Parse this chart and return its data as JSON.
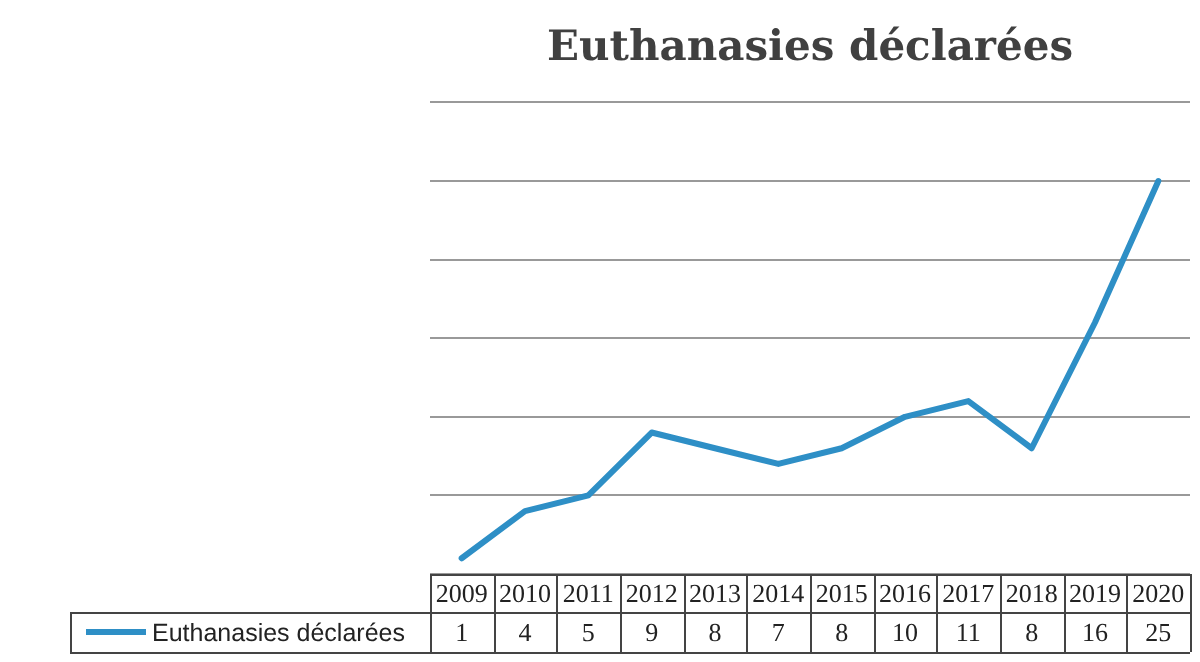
{
  "chart_data": {
    "type": "line",
    "title": "Euthanasies déclarées",
    "categories": [
      "2009",
      "2010",
      "2011",
      "2012",
      "2013",
      "2014",
      "2015",
      "2016",
      "2017",
      "2018",
      "2019",
      "2020"
    ],
    "series": [
      {
        "name": "Euthanasies déclarées",
        "color": "#2e8fc6",
        "values": [
          1,
          4,
          5,
          9,
          8,
          7,
          8,
          10,
          11,
          8,
          16,
          25
        ]
      }
    ],
    "ylim": [
      0,
      30
    ],
    "yticks": [
      {
        "value": 0,
        "label": null
      },
      {
        "value": 5,
        "label": null
      },
      {
        "value": 10,
        "label": null
      },
      {
        "value": 15,
        "label": null
      },
      {
        "value": 20,
        "label": null
      },
      {
        "value": 25,
        "label": null
      },
      {
        "value": 30,
        "label": null
      }
    ],
    "grid": "y",
    "legend": "bottom",
    "marker": "none",
    "line_style": "solid",
    "data_labels": true,
    "tick_labels": "x"
  }
}
